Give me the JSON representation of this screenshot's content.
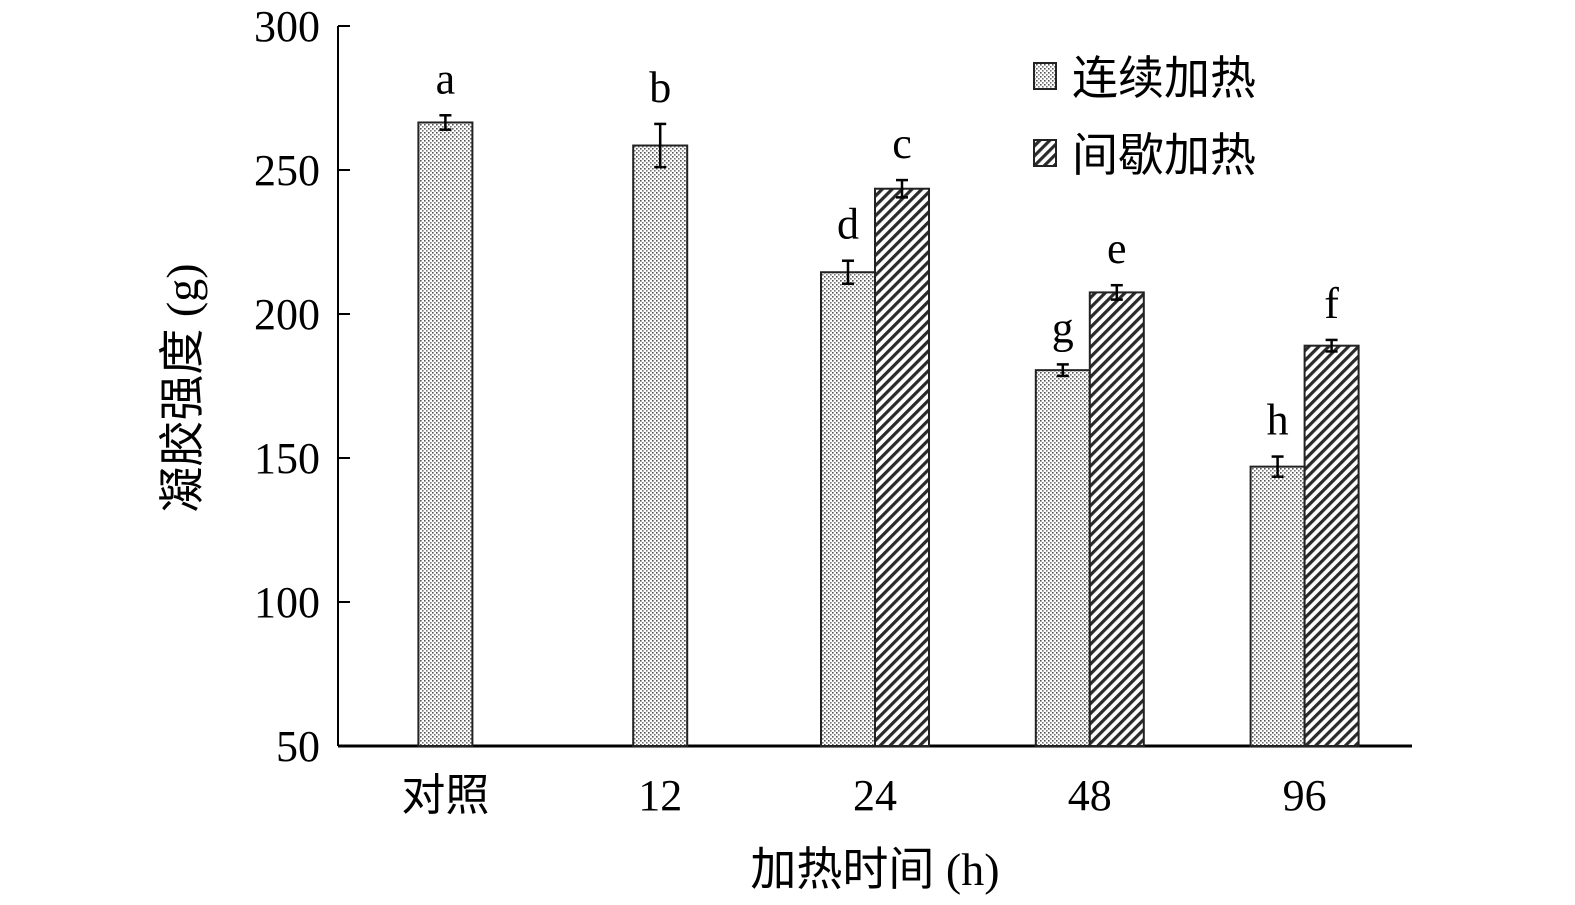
{
  "chart_data": {
    "type": "bar",
    "title": "",
    "xlabel": "加热时间 (h)",
    "ylabel": "凝胶强度 (g)",
    "ylim": [
      50,
      300
    ],
    "yticks": [
      50,
      100,
      150,
      200,
      250,
      300
    ],
    "categories": [
      "对照",
      "12",
      "24",
      "48",
      "96"
    ],
    "legend_position": "top-right",
    "series": [
      {
        "name": "连续加热",
        "pattern": "dotted",
        "values": [
          266.5,
          258.5,
          214.5,
          180.5,
          147.0
        ],
        "errors": [
          2.5,
          7.5,
          4.0,
          2.0,
          3.5
        ],
        "labels": [
          "a",
          "b",
          "d",
          "g",
          "h"
        ]
      },
      {
        "name": "间歇加热",
        "pattern": "hatched",
        "values": [
          null,
          null,
          243.5,
          207.5,
          189.0
        ],
        "errors": [
          null,
          null,
          3.0,
          2.5,
          2.0
        ],
        "labels": [
          null,
          null,
          "c",
          "e",
          "f"
        ]
      }
    ]
  },
  "colors": {
    "axis": "#000000",
    "bar_outline": "#222222",
    "fill_bg": "#ffffff",
    "pattern_ink": "#2a2a2a"
  }
}
